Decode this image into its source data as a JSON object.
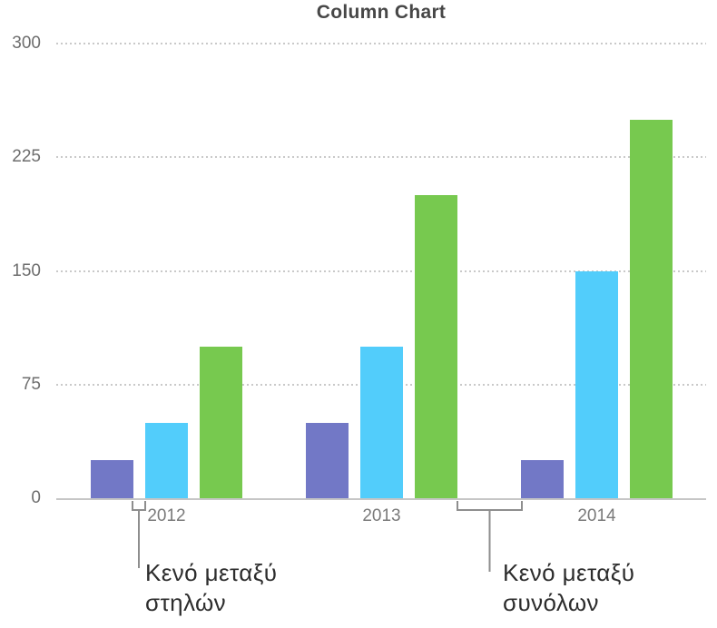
{
  "chart_data": {
    "type": "bar",
    "title": "Column Chart",
    "categories": [
      "2012",
      "2013",
      "2014"
    ],
    "series": [
      {
        "name": "purple",
        "color": "#7278c6",
        "values": [
          25,
          50,
          25
        ]
      },
      {
        "name": "blue",
        "color": "#52cdfb",
        "values": [
          50,
          100,
          150
        ]
      },
      {
        "name": "green",
        "color": "#77c94f",
        "values": [
          100,
          200,
          250
        ]
      }
    ],
    "xlabel": "",
    "ylabel": "",
    "ylim": [
      0,
      300
    ],
    "yticks": [
      0,
      75,
      150,
      225,
      300
    ],
    "grid": "horizontal-dotted",
    "legend": "none"
  },
  "annotations": {
    "column_gap": {
      "line1": "Κενό μεταξύ",
      "line2": "στηλών"
    },
    "set_gap": {
      "line1": "Κενό μεταξύ",
      "line2": "συνόλων"
    }
  },
  "colors": {
    "background": "#ffffff",
    "grid": "#c9c9c9",
    "axis": "#c6c6c6",
    "title_text": "#474747",
    "tick_text": "#6e6e6e",
    "category_text": "#7a7a7a",
    "annotation_text": "#2d2d2d",
    "bracket": "#8e8e8e"
  }
}
